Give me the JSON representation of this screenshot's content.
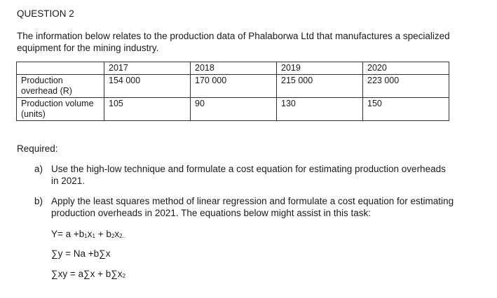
{
  "heading": "QUESTION 2",
  "intro": "The information below relates to the production data of Phalaborwa Ltd that manufactures a specialized equipment for the mining industry.",
  "table": {
    "years": [
      "2017",
      "2018",
      "2019",
      "2020"
    ],
    "rows": [
      {
        "label": "Production overhead (R)",
        "values": [
          "154 000",
          "170 000",
          "215 000",
          "223 000"
        ]
      },
      {
        "label": "Production volume (units)",
        "values": [
          "105",
          "90",
          "130",
          "150"
        ]
      }
    ]
  },
  "required_label": "Required:",
  "questions": [
    {
      "marker": "a)",
      "text": "Use the high-low technique and formulate a cost equation for estimating production overheads in 2021."
    },
    {
      "marker": "b)",
      "text": "Apply the least squares method of linear regression and formulate a cost equation for estimating production overheads in 2021. The equations below might assist in this task:"
    }
  ],
  "equations": {
    "eq1": {
      "prefix": "Y= a +b",
      "sub1": "1",
      "mid": "x",
      "sub2": "1",
      "plus": " + b",
      "sub3": "2",
      "x2": "x",
      "sub4": "2..",
      "full": "Y= a +b1x1 + b2x2.."
    },
    "eq2": "∑y = Na +b∑x",
    "eq3": {
      "prefix": "∑xy = a∑x + b∑x",
      "sub": "2"
    }
  }
}
